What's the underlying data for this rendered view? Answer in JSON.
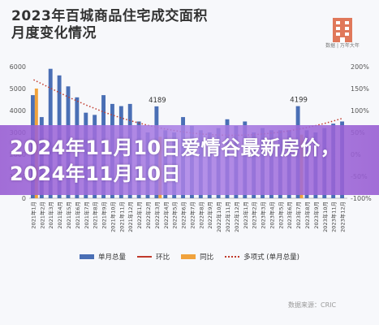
{
  "title_line1": "2023年百城商品住宅成交面积",
  "title_line2": "月度变化情况",
  "logo_caption": "数据 | 万年大年",
  "banner_text": "2024年11月10日爱情谷最新房价，2024年11月10日",
  "source": "数据来源：CRIC",
  "colors": {
    "bar": "#4a6fb5",
    "yoy": "#f0a23c",
    "mom": "#c0392b",
    "trend": "#c0392b",
    "banner": "#a06be0"
  },
  "legend": [
    "单月总量",
    "环比",
    "同比",
    "多项式 (单月总量)"
  ],
  "chart_data": {
    "type": "bar",
    "title": "2023年百城商品住宅成交面积月度变化情况",
    "categories": [
      "2021年1月",
      "2021年2月",
      "2021年3月",
      "2021年4月",
      "2021年5月",
      "2021年6月",
      "2021年7月",
      "2021年8月",
      "2021年9月",
      "2021年10月",
      "2021年11月",
      "2021年12月",
      "2022年1月",
      "2022年2月",
      "2022年3月",
      "2022年4月",
      "2022年5月",
      "2022年6月",
      "2022年7月",
      "2022年8月",
      "2022年9月",
      "2022年10月",
      "2022年11月",
      "2022年12月",
      "2023年1月",
      "2023年2月",
      "2023年3月",
      "2023年4月",
      "2023年5月",
      "2023年6月",
      "2023年7月",
      "2023年8月",
      "2023年9月",
      "2023年10月",
      "2023年11月",
      "2023年12月"
    ],
    "y_left": {
      "ticks": [
        0,
        1000,
        2000,
        3000,
        4000,
        5000,
        6000
      ],
      "ylim": [
        0,
        6000
      ]
    },
    "y_right": {
      "ticks": [
        "-100%",
        "-50%",
        "0%",
        "50%",
        "100%",
        "150%",
        "200%"
      ],
      "ylim": [
        -100,
        200
      ]
    },
    "series": [
      {
        "name": "单月总量",
        "type": "bar",
        "axis": "left",
        "values": [
          4700,
          3700,
          5900,
          5600,
          5100,
          4600,
          3900,
          3800,
          4700,
          4300,
          4200,
          4300,
          3500,
          3000,
          4189,
          3100,
          3000,
          3700,
          3300,
          3100,
          3000,
          3200,
          3600,
          3300,
          3500,
          3000,
          3200,
          3100,
          3100,
          3100,
          4199,
          3100,
          3000,
          3200,
          3400,
          3500
        ]
      },
      {
        "name": "同比",
        "type": "bar",
        "axis": "right",
        "values": [
          150,
          null,
          null,
          null,
          null,
          null,
          null,
          null,
          null,
          null,
          null,
          null,
          null,
          null,
          40,
          null,
          null,
          null,
          null,
          null,
          null,
          null,
          null,
          null,
          null,
          null,
          null,
          null,
          null,
          null,
          45,
          null,
          null,
          null,
          null,
          null
        ]
      },
      {
        "name": "多项式 (单月总量)",
        "type": "line",
        "style": "dotted",
        "axis": "left",
        "values": [
          5400,
          5200,
          5000,
          4800,
          4600,
          4420,
          4240,
          4080,
          3920,
          3780,
          3650,
          3530,
          3420,
          3320,
          3230,
          3150,
          3080,
          3020,
          2970,
          2930,
          2900,
          2880,
          2870,
          2870,
          2880,
          2900,
          2930,
          2970,
          3020,
          3080,
          3150,
          3230,
          3320,
          3420,
          3530,
          3650
        ]
      }
    ],
    "annotations": [
      {
        "category": "2022年3月",
        "label": "4189"
      },
      {
        "category": "2023年7月",
        "label": "4199"
      }
    ],
    "grid": false,
    "legend_position": "bottom"
  }
}
